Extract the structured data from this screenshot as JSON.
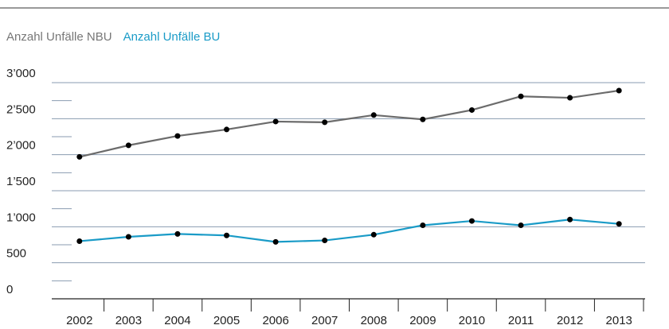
{
  "chart_data": {
    "type": "line",
    "categories": [
      "2002",
      "2003",
      "2004",
      "2005",
      "2006",
      "2007",
      "2008",
      "2009",
      "2010",
      "2011",
      "2012",
      "2013"
    ],
    "series": [
      {
        "name": "Anzahl Unfälle NBU",
        "color": "#6b6b6b",
        "values": [
          1970,
          2130,
          2260,
          2350,
          2460,
          2450,
          2550,
          2490,
          2620,
          2810,
          2790,
          2890
        ]
      },
      {
        "name": "Anzahl Unfälle BU",
        "color": "#1a9bc7",
        "values": [
          800,
          860,
          900,
          880,
          790,
          810,
          890,
          1020,
          1080,
          1020,
          1100,
          1040
        ]
      }
    ],
    "marker_color": "#000000",
    "ylim": [
      0,
      3000
    ],
    "yticks": [
      0,
      500,
      {
        "value": 1000,
        "label": "1’000"
      },
      {
        "value": 1500,
        "label": "1’500"
      },
      {
        "value": 2000,
        "label": "2’000"
      },
      {
        "value": 2500,
        "label": "2’500"
      },
      {
        "value": 3000,
        "label": "3’000"
      }
    ],
    "minor_yticks": [
      250,
      750,
      1250,
      1750,
      2250,
      2750
    ],
    "grid": true
  }
}
